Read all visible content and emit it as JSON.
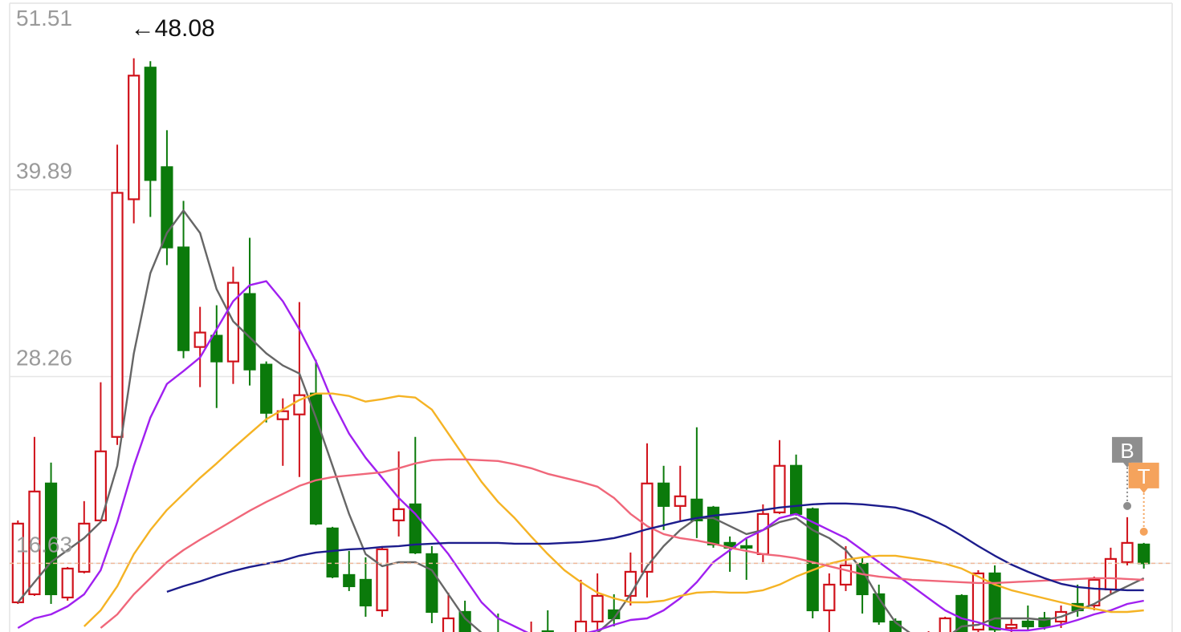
{
  "chart_data": {
    "type": "candlestick",
    "ylim": [
      12.35,
      51.51
    ],
    "yticks": [
      51.51,
      39.89,
      28.26,
      16.63
    ],
    "grid": true,
    "up_color": "#d0121b",
    "down_color": "#0b7a0b",
    "high_label": "←48.08",
    "ohlc": [
      [
        14.2,
        19.3,
        14.1,
        19.1
      ],
      [
        14.7,
        24.5,
        14.6,
        21.1
      ],
      [
        21.6,
        22.9,
        14.1,
        14.7
      ],
      [
        14.5,
        16.4,
        14.3,
        16.3
      ],
      [
        16.1,
        20.5,
        16.0,
        19.1
      ],
      [
        19.3,
        27.9,
        19.2,
        23.6
      ],
      [
        24.5,
        42.7,
        24.0,
        39.7
      ],
      [
        39.3,
        48.08,
        37.8,
        47.0
      ],
      [
        47.5,
        47.9,
        38.2,
        40.5
      ],
      [
        41.3,
        43.6,
        35.2,
        36.3
      ],
      [
        36.3,
        39.2,
        29.4,
        29.9
      ],
      [
        30.1,
        32.6,
        27.6,
        31.0
      ],
      [
        30.8,
        32.7,
        26.3,
        29.2
      ],
      [
        29.2,
        35.1,
        27.8,
        34.1
      ],
      [
        33.4,
        36.9,
        27.7,
        28.7
      ],
      [
        29.0,
        29.2,
        25.4,
        26.0
      ],
      [
        25.6,
        26.9,
        22.7,
        26.1
      ],
      [
        25.9,
        32.9,
        22.0,
        27.1
      ],
      [
        27.2,
        29.3,
        19.0,
        19.1
      ],
      [
        18.8,
        18.9,
        15.7,
        15.8
      ],
      [
        15.9,
        17.4,
        14.9,
        15.2
      ],
      [
        15.6,
        17.0,
        13.3,
        14.0
      ],
      [
        13.7,
        17.7,
        13.3,
        17.5
      ],
      [
        19.3,
        23.6,
        18.3,
        20.0
      ],
      [
        20.3,
        24.5,
        17.2,
        17.3
      ],
      [
        17.2,
        17.7,
        12.9,
        13.6
      ],
      [
        12.0,
        14.8,
        11.8,
        13.2
      ],
      [
        13.6,
        14.3,
        11.5,
        11.7
      ],
      [
        12.0,
        12.3,
        11.0,
        11.2
      ],
      [
        12.2,
        13.5,
        11.2,
        11.5
      ],
      [
        11.0,
        11.9,
        10.8,
        11.6
      ],
      [
        11.4,
        13.0,
        11.2,
        12.1
      ],
      [
        12.4,
        13.7,
        11.6,
        11.8
      ],
      [
        11.9,
        12.2,
        11.2,
        11.5
      ],
      [
        12.0,
        15.6,
        11.8,
        13.0
      ],
      [
        13.0,
        16.0,
        12.5,
        14.6
      ],
      [
        13.7,
        14.7,
        12.7,
        13.2
      ],
      [
        14.6,
        17.3,
        14.0,
        16.1
      ],
      [
        16.1,
        24.1,
        14.5,
        21.6
      ],
      [
        21.6,
        22.7,
        18.7,
        20.2
      ],
      [
        20.2,
        22.7,
        19.3,
        20.8
      ],
      [
        20.6,
        25.1,
        18.2,
        19.3
      ],
      [
        20.1,
        20.2,
        17.6,
        17.8
      ],
      [
        17.9,
        18.3,
        16.1,
        17.6
      ],
      [
        17.7,
        18.2,
        15.6,
        17.6
      ],
      [
        17.2,
        20.3,
        16.7,
        19.7
      ],
      [
        19.8,
        24.3,
        19.7,
        22.7
      ],
      [
        22.7,
        23.4,
        19.6,
        19.7
      ],
      [
        20.0,
        20.1,
        13.2,
        13.7
      ],
      [
        13.7,
        16.0,
        12.3,
        15.3
      ],
      [
        15.3,
        17.7,
        14.9,
        16.5
      ],
      [
        16.6,
        17.0,
        13.5,
        14.7
      ],
      [
        14.7,
        15.3,
        12.8,
        13.0
      ],
      [
        13.0,
        13.2,
        11.5,
        11.7
      ],
      [
        11.9,
        12.2,
        11.0,
        11.3
      ],
      [
        11.3,
        12.4,
        11.1,
        12.2
      ],
      [
        12.2,
        13.3,
        11.9,
        13.2
      ],
      [
        14.6,
        14.7,
        11.9,
        12.2
      ],
      [
        12.5,
        16.2,
        12.2,
        16.0
      ],
      [
        16.0,
        16.5,
        12.2,
        12.5
      ],
      [
        12.6,
        13.2,
        12.3,
        12.8
      ],
      [
        13.0,
        14.0,
        12.5,
        12.7
      ],
      [
        13.2,
        13.6,
        12.5,
        12.7
      ],
      [
        13.0,
        14.0,
        12.6,
        13.6
      ],
      [
        14.1,
        15.3,
        13.3,
        13.7
      ],
      [
        14.0,
        15.8,
        13.7,
        15.6
      ],
      [
        15.0,
        17.6,
        14.7,
        16.9
      ],
      [
        16.7,
        19.5,
        16.5,
        17.9
      ],
      [
        17.8,
        17.9,
        16.3,
        16.63
      ]
    ],
    "series": [
      {
        "color": "#666666",
        "values": [
          14.2,
          15.45,
          16.7,
          17.45,
          18.2,
          19.2,
          22.7,
          29.7,
          34.7,
          37.2,
          38.6,
          37.2,
          33.7,
          31.7,
          30.7,
          29.7,
          28.95,
          28.45,
          25.7,
          22.7,
          19.7,
          17.2,
          16.45,
          16.7,
          16.7,
          16.2,
          14.7,
          13.2,
          12.3,
          11.7,
          11.2,
          10.95,
          11.2,
          11.7,
          11.95,
          12.3,
          13.2,
          14.7,
          16.45,
          17.7,
          18.7,
          19.45,
          19.45,
          18.95,
          18.45,
          18.7,
          19.2,
          19.45,
          18.7,
          18.2,
          17.45,
          16.2,
          14.45,
          12.95,
          12.2,
          11.7,
          11.95,
          12.7,
          12.8,
          13.2,
          13.2,
          13.2,
          13.1,
          13.3,
          13.7,
          14.1,
          14.7,
          15.2,
          15.7
        ]
      },
      {
        "color": "#a020f0",
        "values": [
          12.6,
          13.2,
          13.45,
          13.95,
          14.7,
          16.2,
          19.2,
          22.7,
          25.7,
          27.8,
          28.6,
          29.45,
          31.2,
          32.95,
          33.95,
          34.2,
          32.95,
          31.2,
          29.2,
          26.7,
          24.7,
          23.2,
          21.95,
          20.7,
          19.7,
          18.45,
          17.2,
          15.7,
          14.2,
          13.2,
          12.7,
          12.2,
          11.95,
          11.95,
          12.2,
          12.45,
          12.8,
          13.1,
          13.2,
          13.7,
          14.45,
          15.45,
          16.7,
          17.45,
          18.2,
          18.7,
          19.45,
          19.7,
          19.2,
          18.7,
          18.2,
          17.45,
          16.7,
          15.95,
          15.2,
          14.45,
          13.7,
          13.2,
          12.95,
          12.6,
          12.45,
          12.45,
          12.6,
          12.8,
          13.1,
          13.45,
          13.7,
          14.1,
          14.3
        ]
      },
      {
        "color": "#f5b324",
        "values": [
          null,
          null,
          null,
          null,
          12.7,
          13.7,
          15.2,
          17.2,
          18.7,
          19.95,
          20.95,
          21.95,
          22.85,
          23.8,
          24.7,
          25.6,
          26.2,
          26.8,
          27.2,
          27.2,
          27.05,
          26.7,
          26.85,
          27.05,
          26.95,
          26.2,
          24.7,
          23.2,
          21.7,
          20.45,
          19.45,
          18.3,
          17.2,
          16.2,
          15.45,
          14.8,
          14.45,
          14.2,
          14.2,
          14.3,
          14.6,
          14.8,
          14.85,
          14.8,
          14.8,
          14.95,
          15.3,
          15.8,
          16.2,
          16.6,
          16.85,
          17.0,
          17.1,
          17.1,
          16.95,
          16.8,
          16.6,
          16.3,
          15.8,
          15.3,
          14.95,
          14.7,
          14.45,
          14.2,
          13.95,
          13.8,
          13.6,
          13.6,
          13.7
        ]
      },
      {
        "color": "#f0677a",
        "values": [
          null,
          null,
          null,
          null,
          null,
          12.6,
          13.45,
          14.7,
          15.7,
          16.7,
          17.45,
          18.1,
          18.7,
          19.3,
          19.9,
          20.45,
          20.95,
          21.45,
          21.8,
          22.0,
          22.1,
          22.2,
          22.3,
          22.55,
          22.85,
          23.05,
          23.1,
          23.1,
          23.05,
          23.0,
          22.8,
          22.55,
          22.2,
          21.95,
          21.7,
          21.4,
          20.7,
          19.7,
          18.95,
          18.45,
          18.2,
          18.05,
          17.85,
          17.6,
          17.4,
          17.2,
          17.1,
          16.95,
          16.7,
          16.45,
          16.2,
          15.95,
          15.8,
          15.7,
          15.6,
          15.55,
          15.5,
          15.45,
          15.4,
          15.4,
          15.45,
          15.5,
          15.55,
          15.6,
          15.65,
          15.7,
          15.7,
          15.65,
          15.6
        ]
      },
      {
        "color": "#1c1c8c",
        "values": [
          null,
          null,
          null,
          null,
          null,
          null,
          null,
          null,
          null,
          14.85,
          15.2,
          15.5,
          15.85,
          16.15,
          16.4,
          16.6,
          16.8,
          17.1,
          17.3,
          17.4,
          17.5,
          17.55,
          17.65,
          17.7,
          17.8,
          17.85,
          17.9,
          17.9,
          17.9,
          17.9,
          17.85,
          17.85,
          17.85,
          17.9,
          17.95,
          18.05,
          18.2,
          18.45,
          18.75,
          19.0,
          19.25,
          19.45,
          19.6,
          19.7,
          19.8,
          19.95,
          20.1,
          20.2,
          20.3,
          20.35,
          20.35,
          20.3,
          20.2,
          20.1,
          19.85,
          19.45,
          18.95,
          18.35,
          17.7,
          17.1,
          16.55,
          16.1,
          15.7,
          15.35,
          15.15,
          15.05,
          15.0,
          14.95,
          14.95
        ]
      }
    ],
    "signals": [
      {
        "label": "B",
        "index": 67,
        "color": "#8e8e8e"
      },
      {
        "label": "T",
        "index": 68,
        "color": "#f5a35c"
      }
    ]
  }
}
